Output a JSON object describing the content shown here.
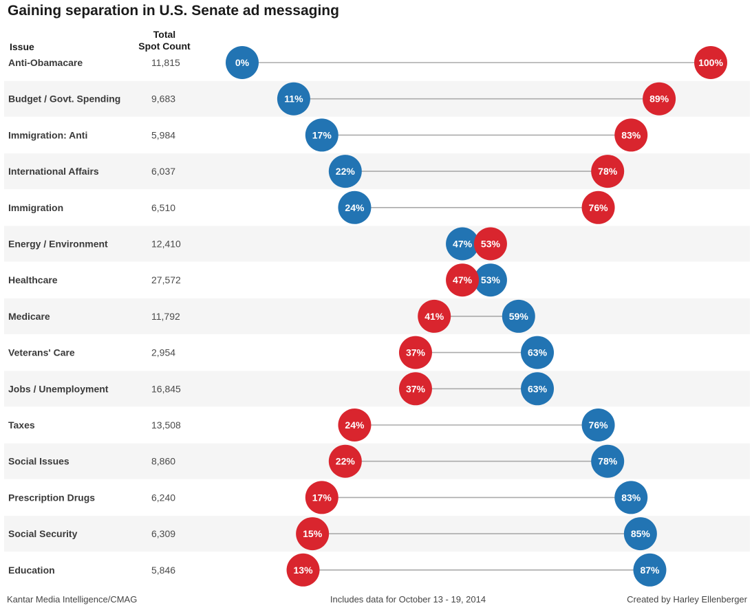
{
  "chart_data": {
    "type": "dumbbell",
    "title": "Gaining separation in U.S. Senate ad messaging",
    "columns": {
      "issue": "Issue",
      "count_line1": "Total",
      "count_line2": "Spot Count"
    },
    "xlim": [
      0,
      100
    ],
    "colors": {
      "blue": "#2274b3",
      "red": "#d9252e",
      "band": "#f5f5f5",
      "line": "#aaaaaa"
    },
    "rows": [
      {
        "issue": "Anti-Obamacare",
        "count": "11,815",
        "blue": 0,
        "red": 100
      },
      {
        "issue": "Budget / Govt. Spending",
        "count": "9,683",
        "blue": 11,
        "red": 89
      },
      {
        "issue": "Immigration:  Anti",
        "count": "5,984",
        "blue": 17,
        "red": 83
      },
      {
        "issue": "International Affairs",
        "count": "6,037",
        "blue": 22,
        "red": 78
      },
      {
        "issue": "Immigration",
        "count": "6,510",
        "blue": 24,
        "red": 76
      },
      {
        "issue": "Energy / Environment",
        "count": "12,410",
        "blue": 47,
        "red": 53
      },
      {
        "issue": "Healthcare",
        "count": "27,572",
        "blue": 53,
        "red": 47
      },
      {
        "issue": "Medicare",
        "count": "11,792",
        "blue": 59,
        "red": 41
      },
      {
        "issue": "Veterans' Care",
        "count": "2,954",
        "blue": 63,
        "red": 37
      },
      {
        "issue": "Jobs / Unemployment",
        "count": "16,845",
        "blue": 63,
        "red": 37
      },
      {
        "issue": "Taxes",
        "count": "13,508",
        "blue": 76,
        "red": 24
      },
      {
        "issue": "Social Issues",
        "count": "8,860",
        "blue": 78,
        "red": 22
      },
      {
        "issue": "Prescription Drugs",
        "count": "6,240",
        "blue": 83,
        "red": 17
      },
      {
        "issue": "Social Security",
        "count": "6,309",
        "blue": 85,
        "red": 15
      },
      {
        "issue": "Education",
        "count": "5,846",
        "blue": 87,
        "red": 13
      }
    ]
  },
  "footer": {
    "source": "Kantar Media Intelligence/CMAG",
    "note": "Includes data for October 13 - 19, 2014",
    "credit": "Created by Harley Ellenberger"
  }
}
